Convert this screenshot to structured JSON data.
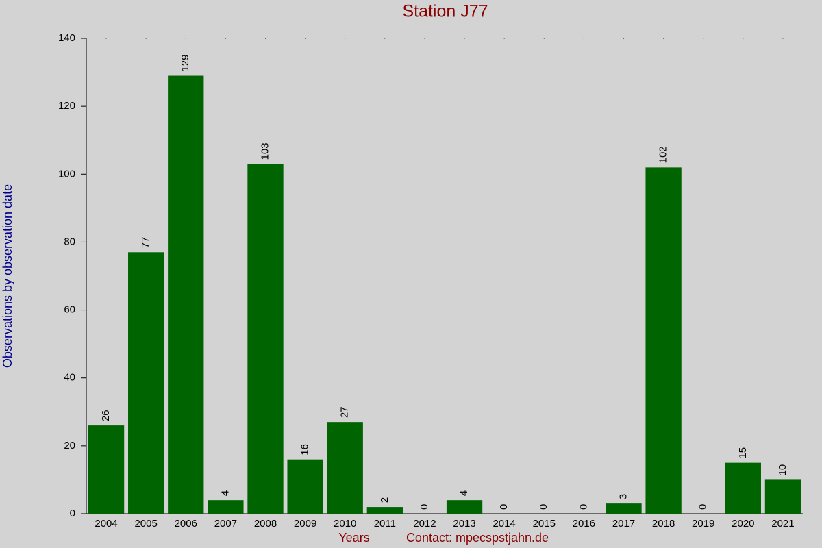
{
  "chart_data": {
    "type": "bar",
    "title": "Station J77",
    "x_label": "Years",
    "y_label": "Observations by observation date",
    "annotation": "Contact: mpecspstjahn.de",
    "categories": [
      "2004",
      "2005",
      "2006",
      "2007",
      "2008",
      "2009",
      "2010",
      "2011",
      "2012",
      "2013",
      "2014",
      "2015",
      "2016",
      "2017",
      "2018",
      "2019",
      "2020",
      "2021"
    ],
    "values": [
      26,
      77,
      129,
      4,
      103,
      16,
      27,
      2,
      0,
      4,
      0,
      0,
      0,
      3,
      102,
      0,
      15,
      10
    ],
    "color": "#006400",
    "ylim": [
      0,
      140
    ],
    "yticks": [
      0,
      20,
      40,
      60,
      80,
      100,
      120,
      140
    ],
    "grid": false
  }
}
